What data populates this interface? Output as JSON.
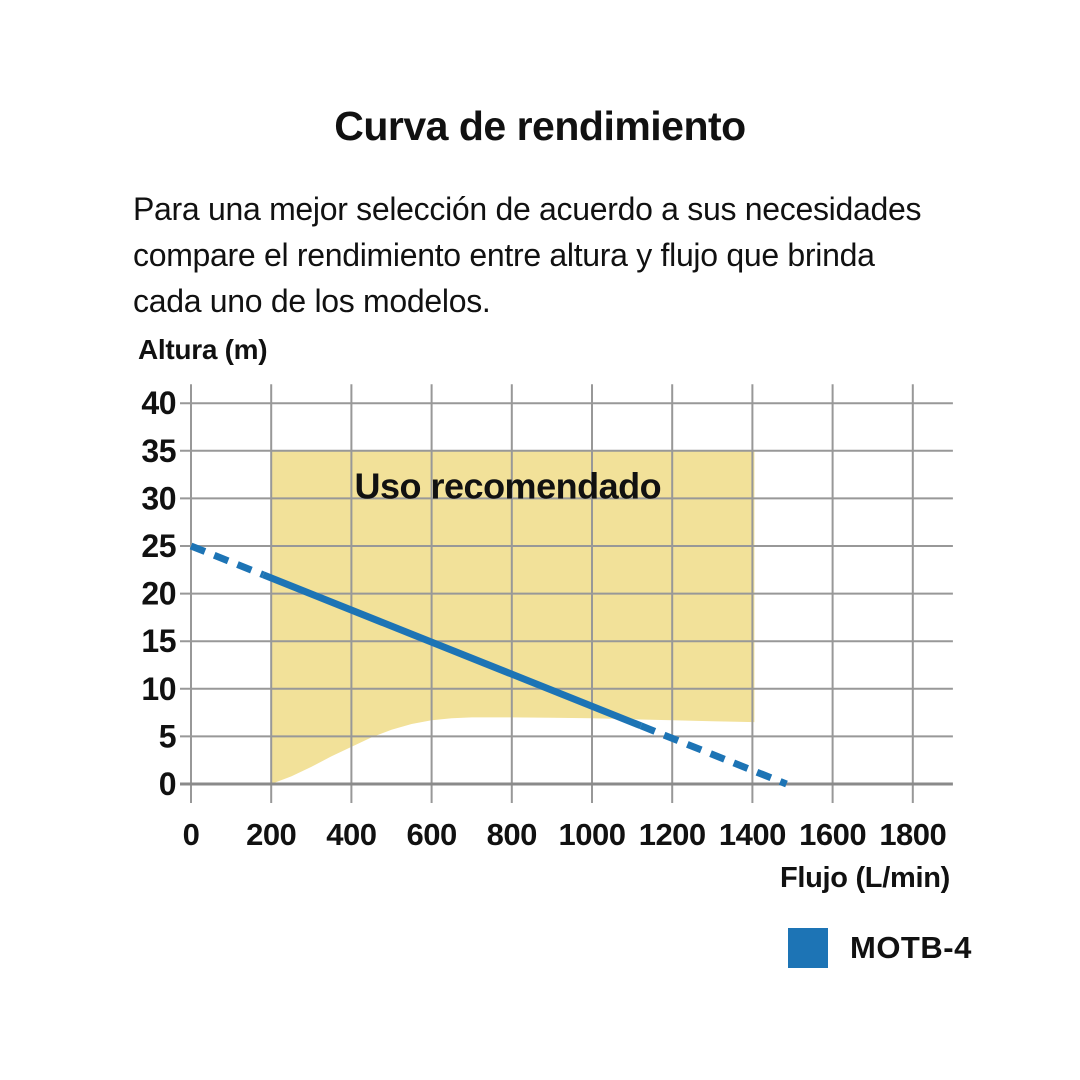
{
  "header": {
    "title": "Curva de rendimiento"
  },
  "description": {
    "lines": [
      "Para una mejor selección de acuerdo a sus necesidades",
      "compare el rendimiento entre altura y flujo que brinda",
      "cada uno de los modelos."
    ]
  },
  "chart_data": {
    "type": "line",
    "title": "Curva de rendimiento",
    "xlabel": "Flujo (L/min)",
    "ylabel": "Altura (m)",
    "xlim": [
      0,
      1900
    ],
    "ylim": [
      0,
      42
    ],
    "grid": true,
    "grid_color": "#989898",
    "x_ticks": [
      0,
      200,
      400,
      600,
      800,
      1000,
      1200,
      1400,
      1600,
      1800
    ],
    "y_ticks": [
      0,
      5,
      10,
      15,
      20,
      25,
      30,
      35,
      40
    ],
    "recommended_region": {
      "label": "Uso recomendado",
      "label_xy": [
        790,
        30
      ],
      "color": "#f2e199",
      "x_range": [
        200,
        1405
      ],
      "y_top": 35,
      "bottom_boundary": [
        [
          200,
          0
        ],
        [
          250,
          0.8
        ],
        [
          300,
          1.8
        ],
        [
          350,
          2.9
        ],
        [
          400,
          3.9
        ],
        [
          450,
          4.9
        ],
        [
          500,
          5.7
        ],
        [
          550,
          6.3
        ],
        [
          600,
          6.7
        ],
        [
          650,
          6.9
        ],
        [
          700,
          7.0
        ],
        [
          800,
          7.0
        ],
        [
          900,
          6.95
        ],
        [
          1000,
          6.9
        ],
        [
          1100,
          6.8
        ],
        [
          1200,
          6.7
        ],
        [
          1300,
          6.6
        ],
        [
          1405,
          6.5
        ]
      ]
    },
    "series": [
      {
        "name": "MOTB-4",
        "color": "#1d74b5",
        "points": [
          [
            0,
            25
          ],
          [
            1485,
            0
          ]
        ],
        "solid_x_range": [
          180,
          1122
        ]
      }
    ],
    "legend": {
      "position": "bottom-right",
      "items": [
        {
          "label": "MOTB-4",
          "color": "#1d74b5"
        }
      ]
    }
  }
}
